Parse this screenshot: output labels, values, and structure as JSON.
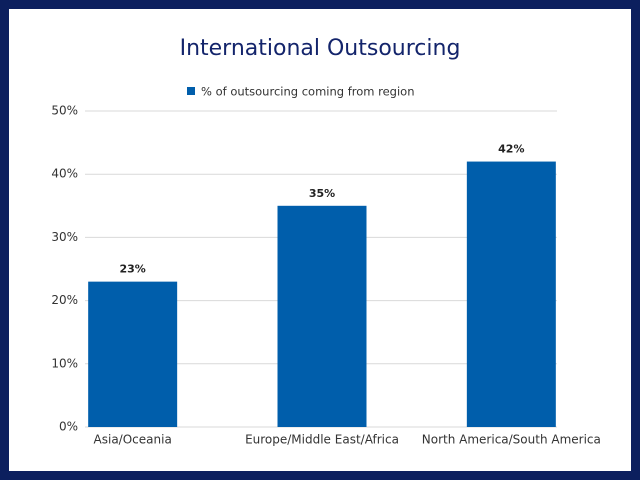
{
  "chart_data": {
    "type": "bar",
    "title": "International Outsourcing",
    "legend": "% of outsourcing coming from region",
    "categories": [
      "Asia/Oceania",
      "Europe/Middle East/Africa",
      "North America/South America"
    ],
    "values": [
      23,
      35,
      42
    ],
    "value_labels": [
      "23%",
      "35%",
      "42%"
    ],
    "color": "#005eab",
    "ylim": [
      0,
      50
    ],
    "yticks": [
      {
        "value": 0,
        "label": "0%"
      },
      {
        "value": 10,
        "label": "10%"
      },
      {
        "value": 20,
        "label": "20%"
      },
      {
        "value": 30,
        "label": "30%"
      },
      {
        "value": 40,
        "label": "40%"
      },
      {
        "value": 50,
        "label": "50%"
      }
    ],
    "grid": true
  }
}
